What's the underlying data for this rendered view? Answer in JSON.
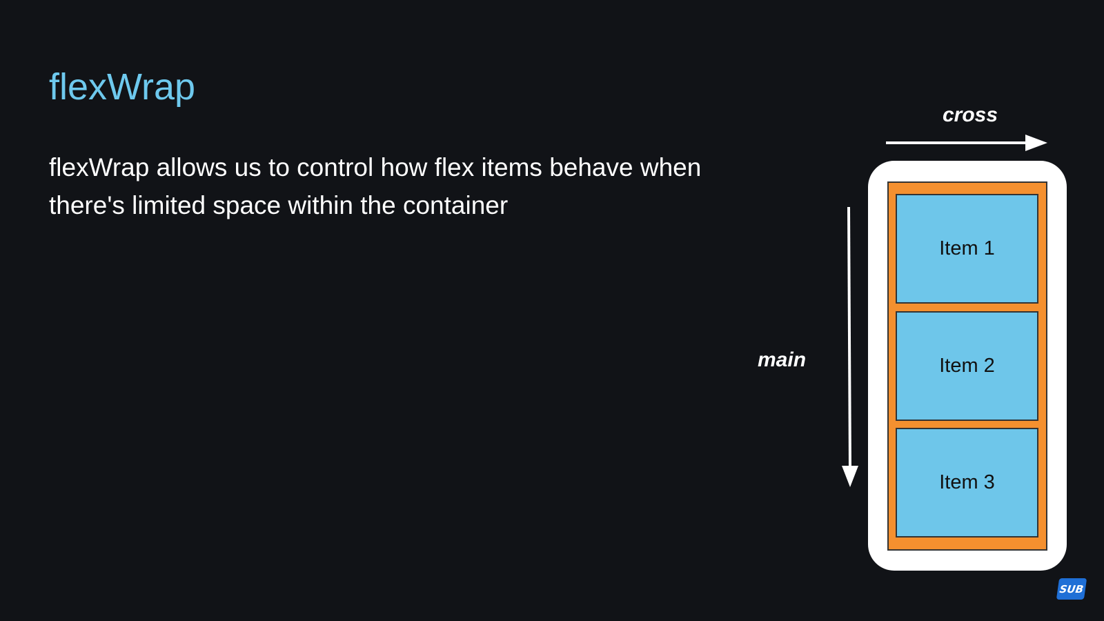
{
  "slide": {
    "title": "flexWrap",
    "body": "flexWrap allows us to control how flex items behave when there's limited space within the container"
  },
  "diagram": {
    "cross_label": "cross",
    "main_label": "main",
    "items": [
      {
        "label": "Item 1"
      },
      {
        "label": "Item 2"
      },
      {
        "label": "Item 3"
      }
    ],
    "colors": {
      "background": "#111317",
      "title": "#6ec9ee",
      "container": "#f4902f",
      "item": "#6ec6ea",
      "frame": "#ffffff"
    }
  },
  "badge": {
    "label": "SUB"
  }
}
